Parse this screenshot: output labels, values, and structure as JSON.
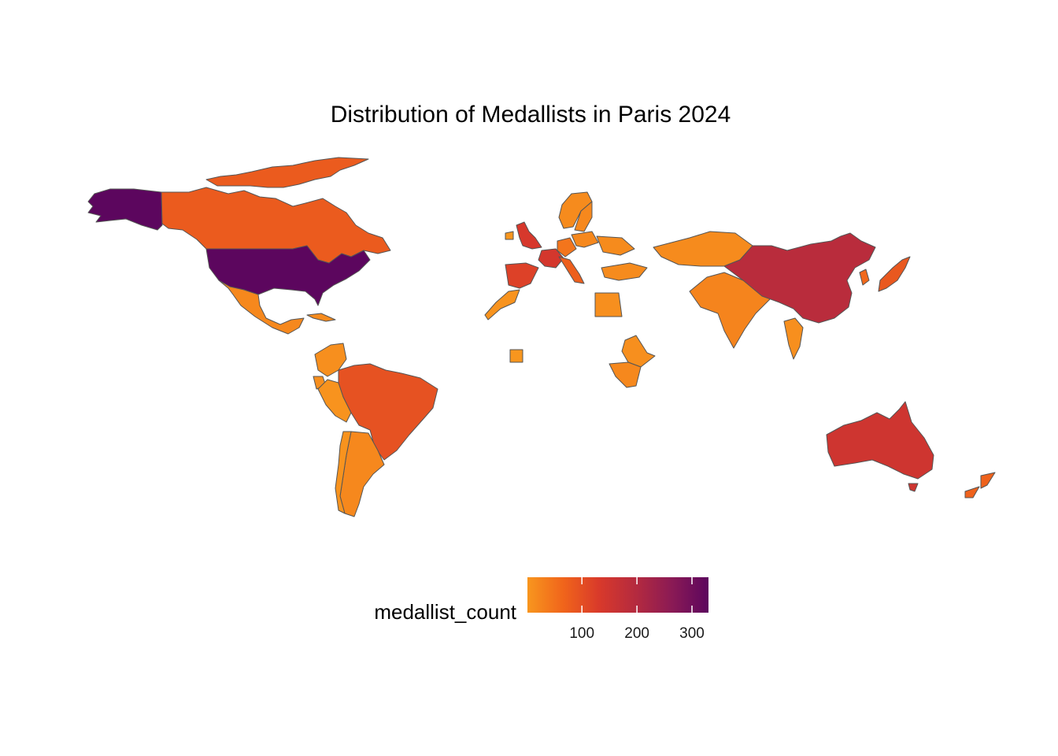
{
  "title": "Distribution of Medallists in Paris 2024",
  "legend": {
    "title": "medallist_count",
    "ticks": [
      100,
      200,
      300
    ],
    "tick_labels": [
      "100",
      "200",
      "300"
    ],
    "range": [
      1,
      330
    ],
    "colors": [
      "#f8961e",
      "#f0641b",
      "#d8392b",
      "#b42a3f",
      "#8a1a55",
      "#5c065e"
    ]
  },
  "map_data": {
    "type": "choropleth",
    "variable": "medallist_count",
    "countries": [
      {
        "name": "United States",
        "value": 330
      },
      {
        "name": "China",
        "value": 190
      },
      {
        "name": "Australia",
        "value": 150
      },
      {
        "name": "France",
        "value": 140
      },
      {
        "name": "United Kingdom",
        "value": 135
      },
      {
        "name": "Spain",
        "value": 120
      },
      {
        "name": "Brazil",
        "value": 95
      },
      {
        "name": "Canada",
        "value": 80
      },
      {
        "name": "Italy",
        "value": 75
      },
      {
        "name": "New Zealand",
        "value": 70
      },
      {
        "name": "Japan",
        "value": 85
      },
      {
        "name": "Mexico",
        "value": 20
      },
      {
        "name": "Argentina",
        "value": 20
      },
      {
        "name": "India",
        "value": 25
      },
      {
        "name": "Kazakhstan",
        "value": 15
      },
      {
        "name": "Egypt",
        "value": 10
      },
      {
        "name": "Ethiopia",
        "value": 10
      },
      {
        "name": "Kenya",
        "value": 20
      },
      {
        "name": "Colombia",
        "value": 10
      },
      {
        "name": "Peru",
        "value": 5
      },
      {
        "name": "Sweden",
        "value": 20
      },
      {
        "name": "Norway",
        "value": 15
      },
      {
        "name": "Germany",
        "value": 45
      },
      {
        "name": "Poland",
        "value": 20
      },
      {
        "name": "Ukraine",
        "value": 15
      },
      {
        "name": "Turkey",
        "value": 15
      },
      {
        "name": "Morocco",
        "value": 5
      },
      {
        "name": "Thailand",
        "value": 10
      },
      {
        "name": "South Korea",
        "value": 60
      },
      {
        "name": "Cuba",
        "value": 15
      },
      {
        "name": "Ecuador",
        "value": 10
      },
      {
        "name": "Chile",
        "value": 5
      },
      {
        "name": "Cape Verde",
        "value": 1
      }
    ]
  }
}
